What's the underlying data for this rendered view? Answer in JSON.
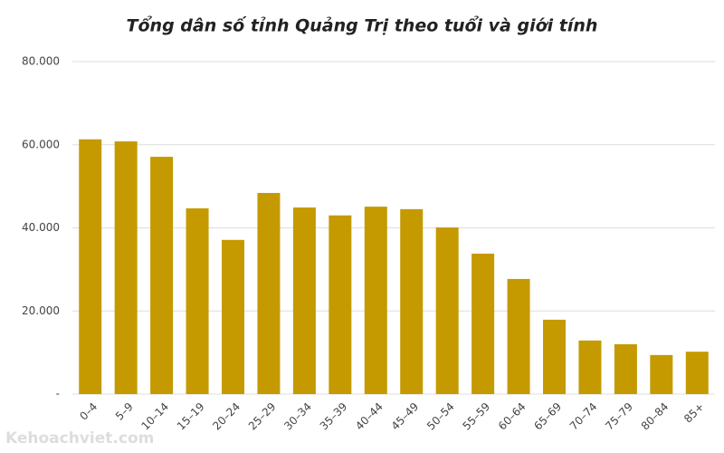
{
  "chart_data": {
    "type": "bar",
    "title": "Tổng dân số tỉnh Quảng Trị theo tuổi và giới tính",
    "categories": [
      "0–4",
      "5–9",
      "10–14",
      "15–19",
      "20–24",
      "25–29",
      "30–34",
      "35–39",
      "40–44",
      "45–49",
      "50–54",
      "55–59",
      "60–64",
      "65–69",
      "70–74",
      "75–79",
      "80–84",
      "85+"
    ],
    "values": [
      61300,
      60800,
      57100,
      44700,
      37100,
      48400,
      44900,
      43000,
      45100,
      44500,
      40100,
      33800,
      27700,
      17900,
      12900,
      12000,
      9400,
      10200
    ],
    "color": "#c49a00",
    "ylim": [
      0,
      80000
    ],
    "yticks": [
      {
        "value": 0,
        "label": "-"
      },
      {
        "value": 20000,
        "label": "20.000"
      },
      {
        "value": 40000,
        "label": "40.000"
      },
      {
        "value": 60000,
        "label": "60.000"
      },
      {
        "value": 80000,
        "label": "80.000"
      }
    ],
    "grid": true
  },
  "watermark": "Kehoachviet.com"
}
